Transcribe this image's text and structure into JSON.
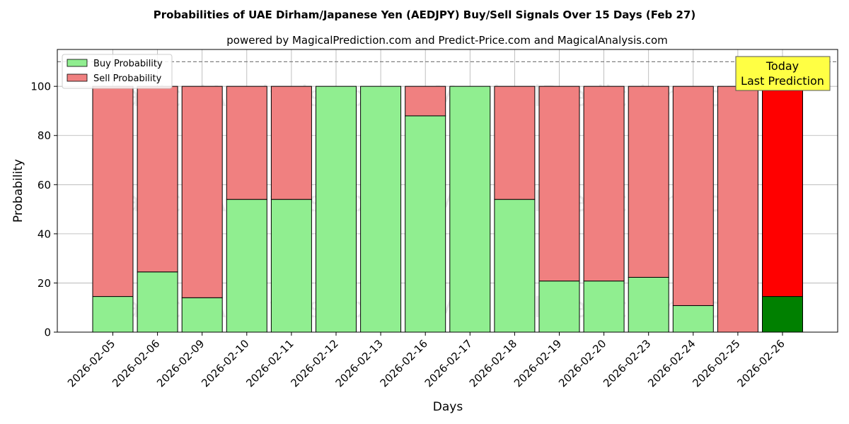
{
  "chart_data": {
    "type": "bar",
    "stacked": true,
    "title": "Probabilities of UAE Dirham/Japanese Yen (AEDJPY) Buy/Sell Signals Over 15 Days (Feb 27)",
    "subtitle": "powered by MagicalPrediction.com and Predict-Price.com and MagicalAnalysis.com",
    "xlabel": "Days",
    "ylabel": "Probability",
    "ylim": [
      0,
      115
    ],
    "yticks": [
      0,
      20,
      40,
      60,
      80,
      100
    ],
    "grid": true,
    "legend_position": "top-left",
    "reference_line": 110,
    "categories": [
      "2026-02-05",
      "2026-02-06",
      "2026-02-09",
      "2026-02-10",
      "2026-02-11",
      "2026-02-12",
      "2026-02-13",
      "2026-02-16",
      "2026-02-17",
      "2026-02-18",
      "2026-02-19",
      "2026-02-20",
      "2026-02-23",
      "2026-02-24",
      "2026-02-25",
      "2026-02-26"
    ],
    "series": [
      {
        "name": "Buy Probability",
        "color": "#90ee90",
        "values": [
          14.5,
          24.5,
          14,
          54,
          54,
          100,
          100,
          88,
          100,
          54,
          20.8,
          20.8,
          22.3,
          10.8,
          0,
          14.5
        ]
      },
      {
        "name": "Sell Probability",
        "color": "#f08080",
        "values": [
          85.5,
          75.5,
          86,
          46,
          46,
          0,
          0,
          12,
          0,
          46,
          79.2,
          79.2,
          77.7,
          89.2,
          100,
          85.5
        ]
      }
    ],
    "highlight": {
      "index": 15,
      "buy_color": "#008000",
      "sell_color": "#ff0000"
    },
    "annotation": {
      "lines": [
        "Today",
        "Last Prediction"
      ],
      "background": "#ffff44"
    },
    "watermarks": [
      "MagicalAnalysis.com",
      "MagicalPrediction.com",
      "MagicalAnalysis.com",
      "MagicalPrediction.com",
      "MagicalAnalysis.com",
      "MagicalPrediction.com"
    ]
  }
}
